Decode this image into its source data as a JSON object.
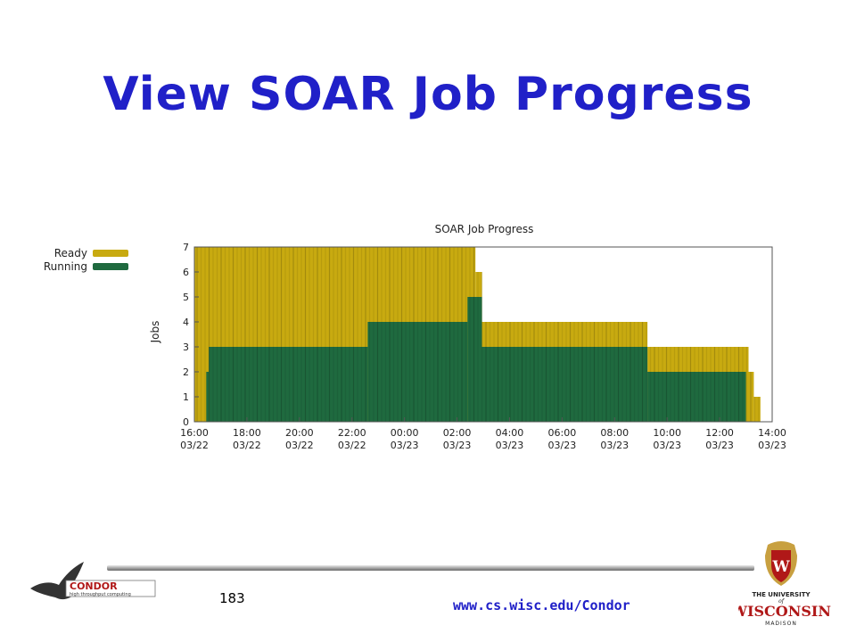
{
  "slide": {
    "title": "View SOAR Job Progress",
    "page_number": "183",
    "url": "www.cs.wisc.edu/Condor"
  },
  "logos": {
    "condor_name": "CONDOR",
    "condor_tagline": "high throughput computing",
    "uw_line1": "THE UNIVERSITY",
    "uw_of": "of",
    "uw_line2": "WISCONSIN",
    "uw_line3": "MADISON"
  },
  "colors": {
    "title": "#2020c8",
    "ready": "#c8aa10",
    "running": "#1f6a3f",
    "url": "#2020c8"
  },
  "chart_data": {
    "type": "area",
    "title": "SOAR Job Progress",
    "ylabel": "Jobs",
    "xlabel": "",
    "ylim": [
      0,
      7
    ],
    "yticks": [
      0,
      1,
      2,
      3,
      4,
      5,
      6,
      7
    ],
    "xlim_hours": [
      0,
      22
    ],
    "xticks": [
      {
        "time": "16:00",
        "date": "03/22"
      },
      {
        "time": "18:00",
        "date": "03/22"
      },
      {
        "time": "20:00",
        "date": "03/22"
      },
      {
        "time": "22:00",
        "date": "03/22"
      },
      {
        "time": "00:00",
        "date": "03/23"
      },
      {
        "time": "02:00",
        "date": "03/23"
      },
      {
        "time": "04:00",
        "date": "03/23"
      },
      {
        "time": "06:00",
        "date": "03/23"
      },
      {
        "time": "08:00",
        "date": "03/23"
      },
      {
        "time": "10:00",
        "date": "03/23"
      },
      {
        "time": "12:00",
        "date": "03/23"
      },
      {
        "time": "14:00",
        "date": "03/23"
      }
    ],
    "legend": [
      {
        "name": "Ready",
        "color": "#c8aa10"
      },
      {
        "name": "Running",
        "color": "#1f6a3f"
      }
    ],
    "legend_position": "left",
    "grid": false,
    "series": [
      {
        "name": "Ready",
        "steps": [
          {
            "start": 0.0,
            "end": 10.7,
            "value": 7
          },
          {
            "start": 10.7,
            "end": 10.95,
            "value": 6
          },
          {
            "start": 10.95,
            "end": 17.25,
            "value": 4
          },
          {
            "start": 17.25,
            "end": 21.1,
            "value": 3
          },
          {
            "start": 21.1,
            "end": 21.3,
            "value": 2
          },
          {
            "start": 21.3,
            "end": 21.55,
            "value": 1
          }
        ]
      },
      {
        "name": "Running",
        "steps": [
          {
            "start": 0.45,
            "end": 0.55,
            "value": 2
          },
          {
            "start": 0.55,
            "end": 6.6,
            "value": 3
          },
          {
            "start": 6.6,
            "end": 10.4,
            "value": 4
          },
          {
            "start": 10.4,
            "end": 10.95,
            "value": 5
          },
          {
            "start": 10.95,
            "end": 17.25,
            "value": 3
          },
          {
            "start": 17.25,
            "end": 21.0,
            "value": 2
          }
        ]
      }
    ]
  }
}
